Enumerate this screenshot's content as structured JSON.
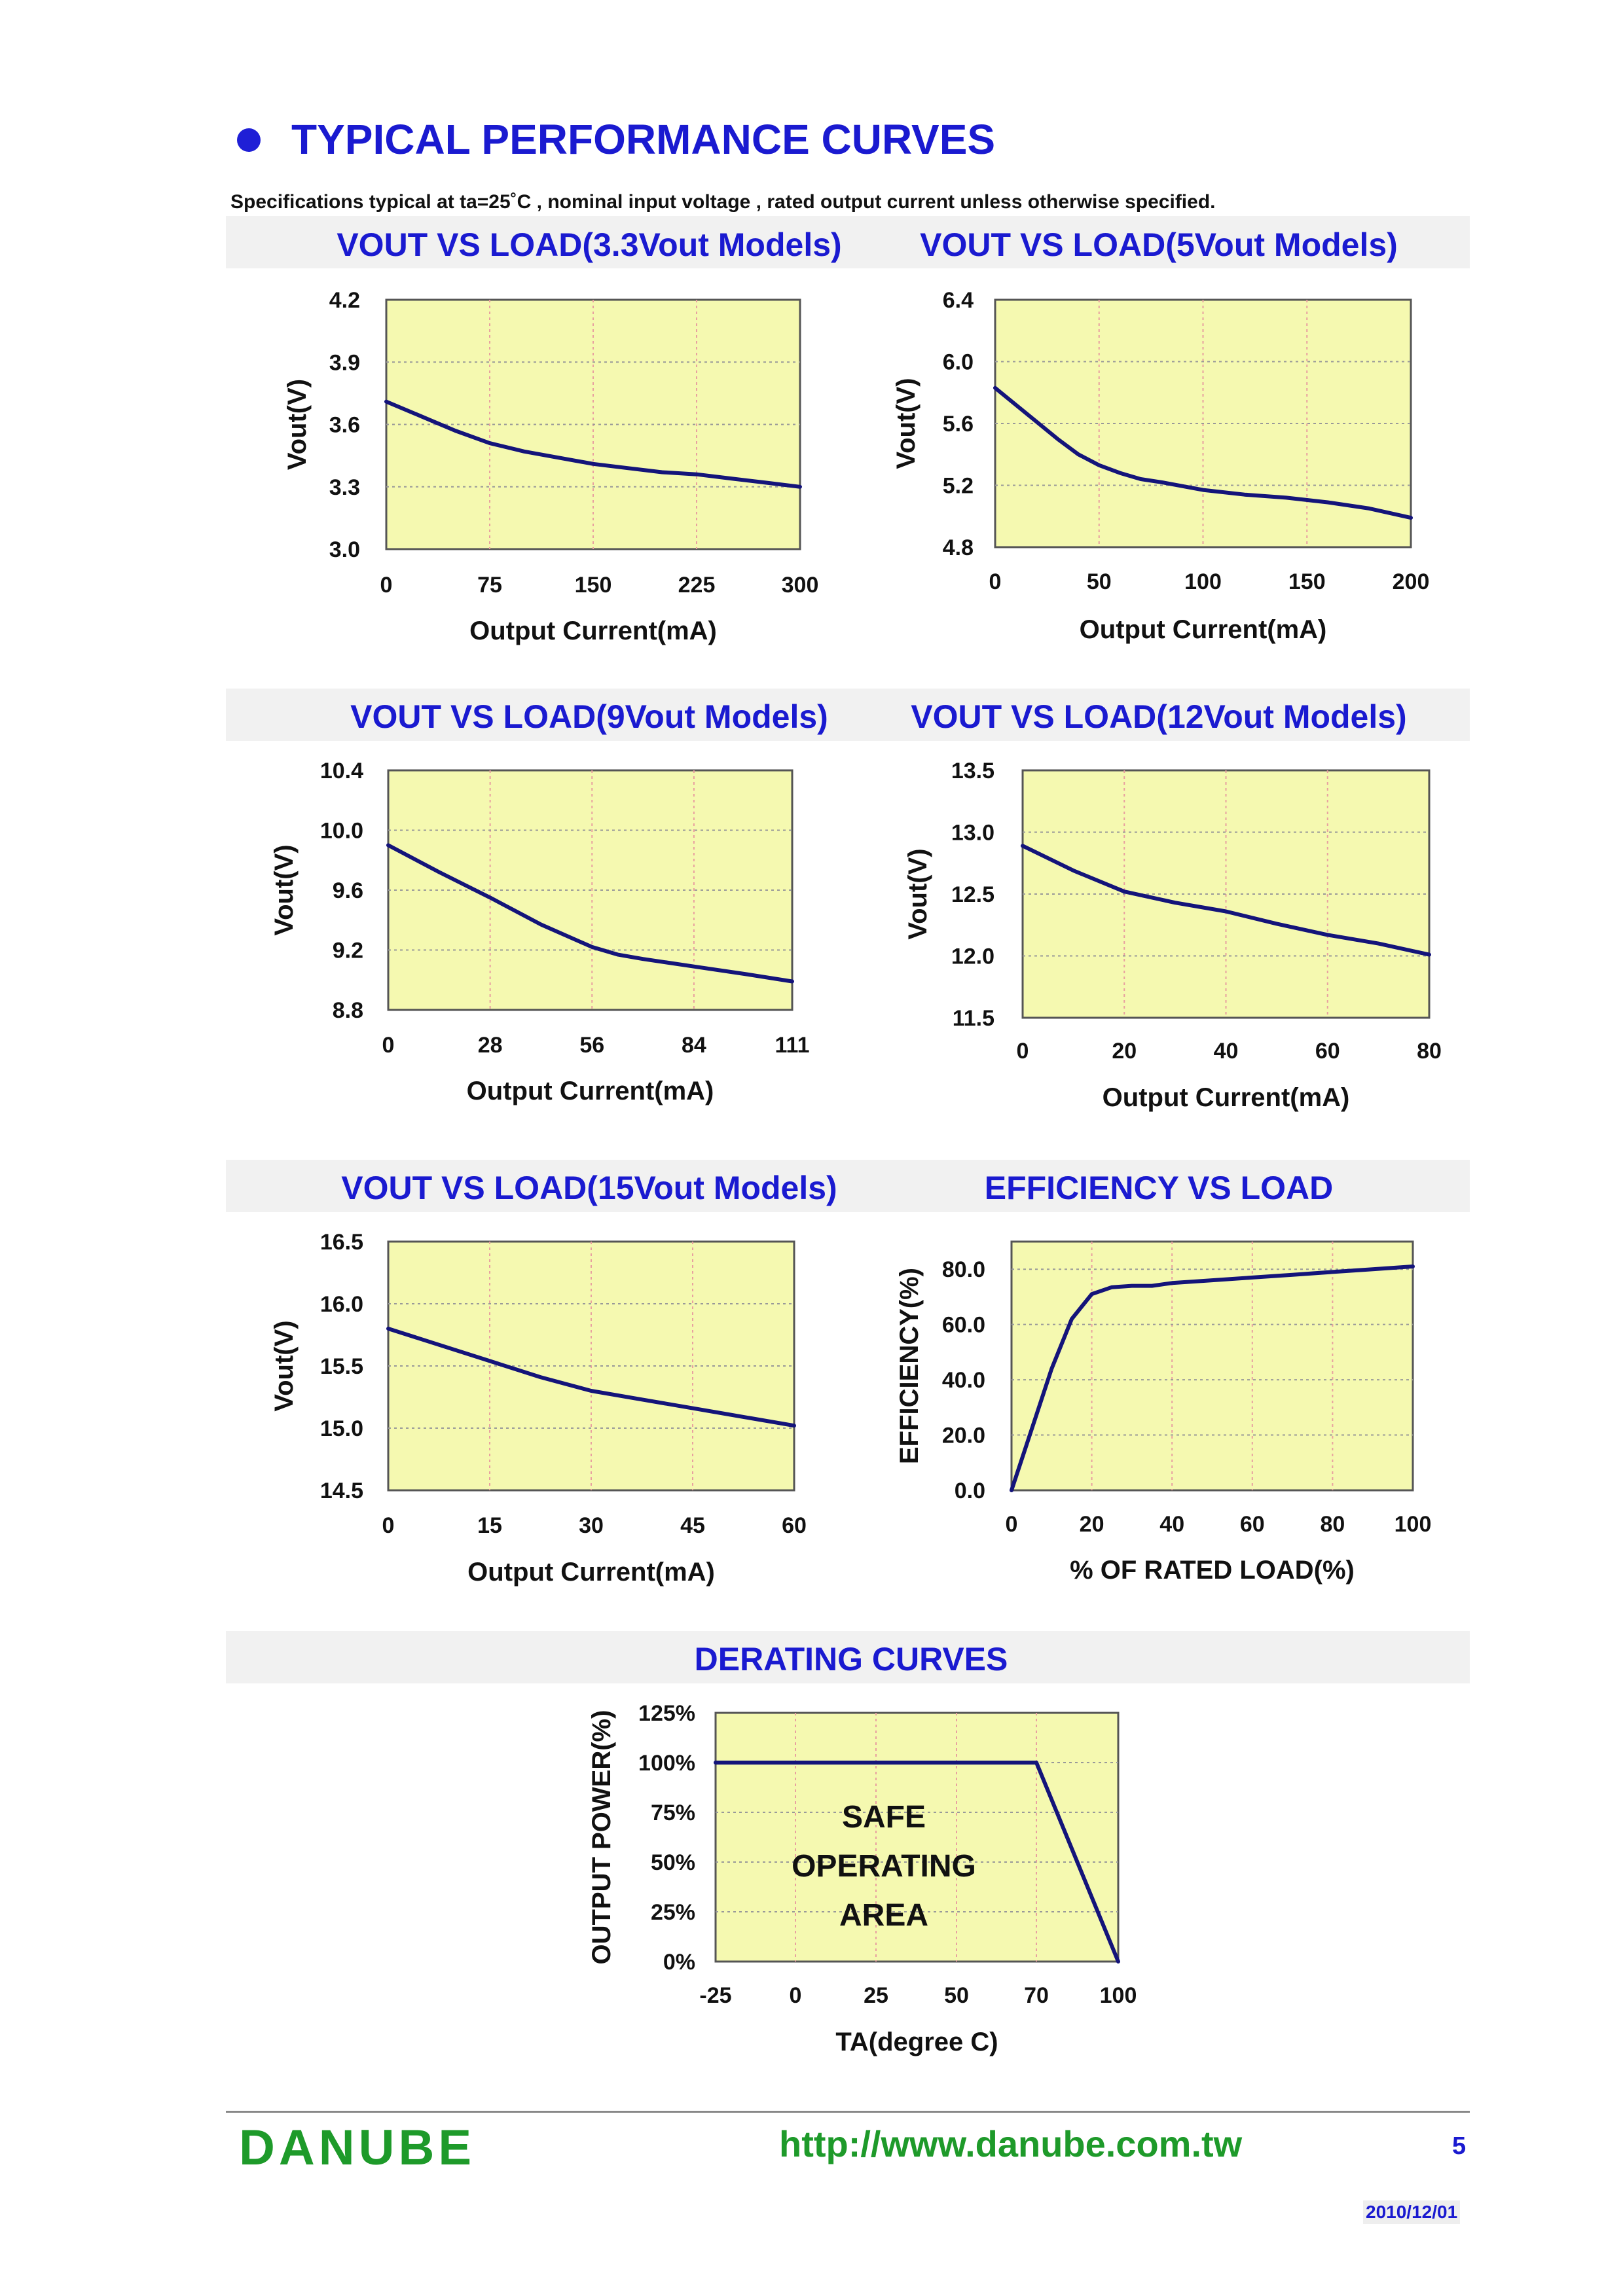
{
  "header": {
    "title": "TYPICAL PERFORMANCE CURVES",
    "subtitle": "Specifications typical at ta=25˚C , nominal input voltage , rated output current unless otherwise specified."
  },
  "colors": {
    "accent": "#1a1ad0",
    "plot_bg": "#f5f9b0",
    "line": "#14147a",
    "brand": "#1e9a2a"
  },
  "chart_data": [
    {
      "id": "c1",
      "type": "line",
      "title": "VOUT VS LOAD(3.3Vout Models)",
      "xlabel": "Output Current(mA)",
      "ylabel": "Vout(V)",
      "xlim": [
        0,
        300
      ],
      "ylim": [
        3.0,
        4.2
      ],
      "xticks": [
        0,
        75,
        150,
        225,
        300
      ],
      "xtick_labels": [
        "0",
        "75",
        "150",
        "225",
        "300"
      ],
      "yticks": [
        3.0,
        3.3,
        3.6,
        3.9,
        4.2
      ],
      "ytick_labels": [
        "3.0",
        "3.3",
        "3.6",
        "3.9",
        "4.2"
      ],
      "x": [
        0,
        25,
        50,
        75,
        100,
        125,
        150,
        175,
        200,
        225,
        250,
        275,
        300
      ],
      "y": [
        3.71,
        3.64,
        3.57,
        3.51,
        3.47,
        3.44,
        3.41,
        3.39,
        3.37,
        3.36,
        3.34,
        3.32,
        3.3
      ]
    },
    {
      "id": "c2",
      "type": "line",
      "title": "VOUT VS LOAD(5Vout Models)",
      "xlabel": "Output Current(mA)",
      "ylabel": "Vout(V)",
      "xlim": [
        0,
        200
      ],
      "ylim": [
        4.8,
        6.4
      ],
      "xticks": [
        0,
        50,
        100,
        150,
        200
      ],
      "xtick_labels": [
        "0",
        "50",
        "100",
        "150",
        "200"
      ],
      "yticks": [
        4.8,
        5.2,
        5.6,
        6.0,
        6.4
      ],
      "ytick_labels": [
        "4.8",
        "5.2",
        "5.6",
        "6.0",
        "6.4"
      ],
      "x": [
        0,
        10,
        20,
        30,
        40,
        50,
        60,
        70,
        80,
        100,
        120,
        140,
        160,
        180,
        200
      ],
      "y": [
        5.83,
        5.72,
        5.61,
        5.5,
        5.4,
        5.33,
        5.28,
        5.24,
        5.22,
        5.17,
        5.14,
        5.12,
        5.09,
        5.05,
        4.99
      ]
    },
    {
      "id": "c3",
      "type": "line",
      "title": "VOUT VS LOAD(9Vout Models)",
      "xlabel": "Output Current(mA)",
      "ylabel": "Vout(V)",
      "xlim": [
        0,
        111
      ],
      "ylim": [
        8.8,
        10.4
      ],
      "xticks": [
        0,
        28,
        56,
        84,
        111
      ],
      "xtick_labels": [
        "0",
        "28",
        "56",
        "84",
        "111"
      ],
      "yticks": [
        8.8,
        9.2,
        9.6,
        10.0,
        10.4
      ],
      "ytick_labels": [
        "8.8",
        "9.2",
        "9.6",
        "10.0",
        "10.4"
      ],
      "x": [
        0,
        14,
        28,
        42,
        56,
        63,
        70,
        84,
        98,
        111
      ],
      "y": [
        9.9,
        9.72,
        9.55,
        9.37,
        9.22,
        9.17,
        9.14,
        9.09,
        9.04,
        8.99
      ]
    },
    {
      "id": "c4",
      "type": "line",
      "title": "VOUT VS LOAD(12Vout Models)",
      "xlabel": "Output Current(mA)",
      "ylabel": "Vout(V)",
      "xlim": [
        0,
        80
      ],
      "ylim": [
        11.5,
        13.5
      ],
      "xticks": [
        0,
        20,
        40,
        60,
        80
      ],
      "xtick_labels": [
        "0",
        "20",
        "40",
        "60",
        "80"
      ],
      "yticks": [
        11.5,
        12.0,
        12.5,
        13.0,
        13.5
      ],
      "ytick_labels": [
        "11.5",
        "12.0",
        "12.5",
        "13.0",
        "13.5"
      ],
      "x": [
        0,
        10,
        20,
        30,
        40,
        50,
        60,
        70,
        80
      ],
      "y": [
        12.89,
        12.69,
        12.52,
        12.43,
        12.36,
        12.26,
        12.17,
        12.1,
        12.01
      ]
    },
    {
      "id": "c5",
      "type": "line",
      "title": "VOUT VS LOAD(15Vout Models)",
      "xlabel": "Output Current(mA)",
      "ylabel": "Vout(V)",
      "xlim": [
        0,
        60
      ],
      "ylim": [
        14.5,
        16.5
      ],
      "xticks": [
        0,
        15,
        30,
        45,
        60
      ],
      "xtick_labels": [
        "0",
        "15",
        "30",
        "45",
        "60"
      ],
      "yticks": [
        14.5,
        15.0,
        15.5,
        16.0,
        16.5
      ],
      "ytick_labels": [
        "14.5",
        "15.0",
        "15.5",
        "16.0",
        "16.5"
      ],
      "x": [
        0,
        7.5,
        15,
        22.5,
        30,
        37.5,
        45,
        52.5,
        60
      ],
      "y": [
        15.8,
        15.67,
        15.54,
        15.41,
        15.3,
        15.23,
        15.16,
        15.09,
        15.02
      ]
    },
    {
      "id": "c6",
      "type": "line",
      "title": "EFFICIENCY VS LOAD",
      "xlabel": "% OF RATED LOAD(%)",
      "ylabel": "EFFICIENCY(%)",
      "xlim": [
        0,
        100
      ],
      "ylim": [
        0,
        90
      ],
      "xticks": [
        0,
        20,
        40,
        60,
        80,
        100
      ],
      "xtick_labels": [
        "0",
        "20",
        "40",
        "60",
        "80",
        "100"
      ],
      "yticks": [
        0,
        20,
        40,
        60,
        80
      ],
      "ytick_labels": [
        "0.0",
        "20.0",
        "40.0",
        "60.0",
        "80.0"
      ],
      "x": [
        0,
        5,
        10,
        15,
        20,
        25,
        30,
        35,
        40,
        50,
        60,
        70,
        80,
        90,
        100
      ],
      "y": [
        0,
        22,
        44,
        62,
        71,
        73.5,
        74,
        74,
        75,
        76,
        77,
        78,
        79,
        80,
        81
      ]
    },
    {
      "id": "c7",
      "type": "line",
      "title": "DERATING CURVES",
      "xlabel": "TA(degree C)",
      "ylabel": "OUTPUT POWER(%)",
      "x_category_labels": [
        "-25",
        "0",
        "25",
        "50",
        "70",
        "100"
      ],
      "ytick_labels": [
        "0%",
        "25%",
        "50%",
        "75%",
        "100%",
        "125%"
      ],
      "ylim": [
        0,
        125
      ],
      "x": [
        -25,
        70,
        100
      ],
      "y": [
        100,
        100,
        0
      ],
      "annotation": [
        "SAFE",
        "OPERATING",
        "AREA"
      ]
    }
  ],
  "footer": {
    "brand": "DANUBE",
    "url": "http://www.danube.com.tw",
    "page": "5",
    "date": "2010/12/01"
  }
}
